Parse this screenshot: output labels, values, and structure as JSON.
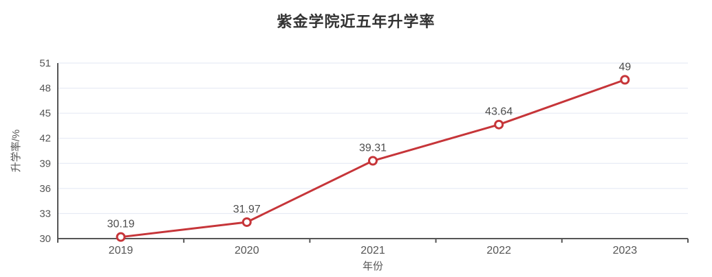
{
  "page": {
    "background": "#ffffff"
  },
  "chart_data": {
    "type": "line",
    "title": "紫金学院近五年升学率",
    "categories": [
      "2019",
      "2020",
      "2021",
      "2022",
      "2023"
    ],
    "values": [
      30.19,
      31.97,
      39.31,
      43.64,
      49
    ],
    "data_labels": [
      "30.19",
      "31.97",
      "39.31",
      "43.64",
      "49"
    ],
    "xlabel": "年份",
    "ylabel": "升学率/%",
    "ylim": [
      30,
      51
    ],
    "yticks": [
      30,
      33,
      36,
      39,
      42,
      45,
      48,
      51
    ],
    "grid": true,
    "legend": "none",
    "colors": {
      "line": "#c63539",
      "marker_fill": "#ffffff",
      "axis": "#555555",
      "grid": "#e2e7f3",
      "title_text": "#333333",
      "tick_label": "#555555",
      "data_label": "#4d4d4d"
    }
  }
}
